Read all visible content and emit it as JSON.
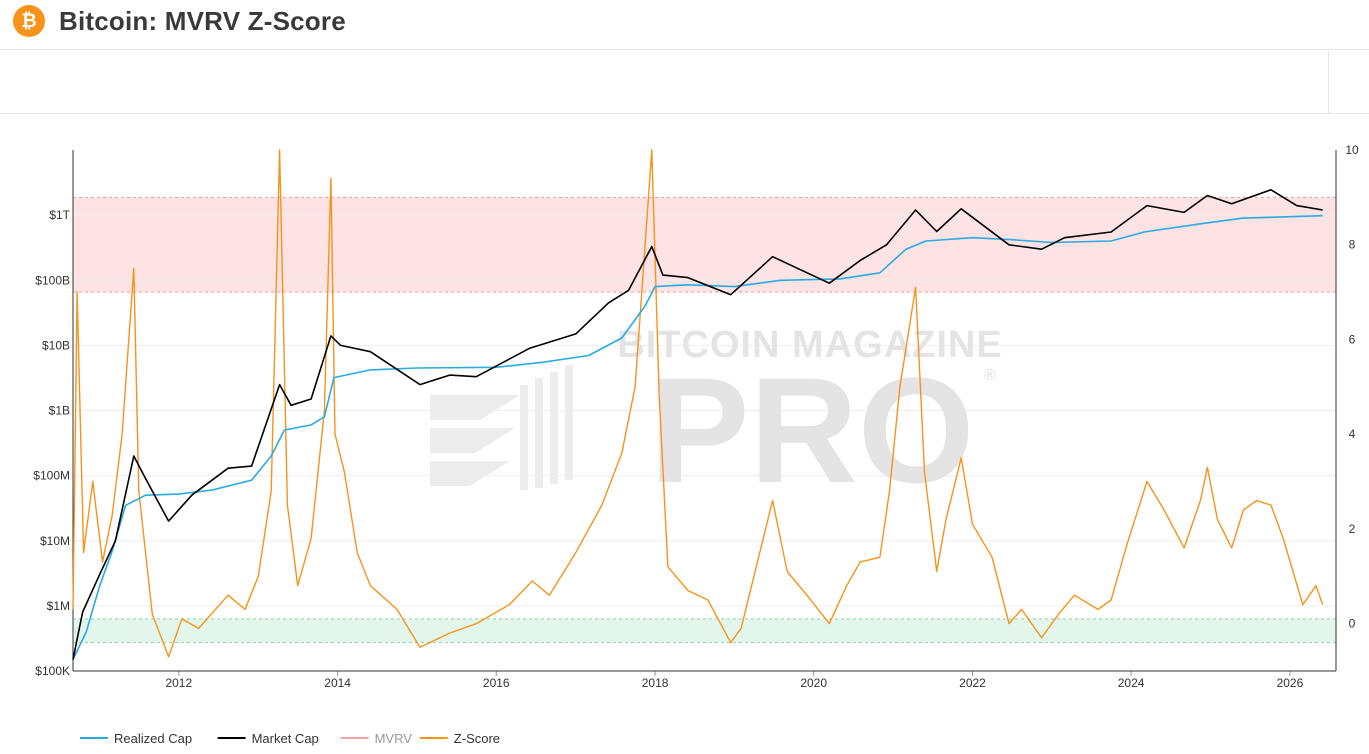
{
  "header": {
    "logo_glyph": "₿",
    "logo_icon": "bitcoin-logo-icon",
    "title": "Bitcoin: MVRV Z-Score"
  },
  "watermark": {
    "line1": "BITCOIN MAGAZINE",
    "line2": "PRO",
    "reg": "®"
  },
  "colors": {
    "realized": "#29abe2",
    "market": "#000000",
    "mvrv": "#f4a6a6",
    "zscore": "#f7931a",
    "red_band": "#fde3e3",
    "green_band": "#e3f6ec"
  },
  "chart_data": {
    "type": "line",
    "title": "Bitcoin: MVRV Z-Score",
    "x_range": [
      "2010-09-01",
      "2026-08-01"
    ],
    "x_ticks": [
      "2012",
      "2014",
      "2016",
      "2018",
      "2020",
      "2022",
      "2024",
      "2026"
    ],
    "y_left": {
      "scale": "log",
      "range": [
        100000,
        10000000000000
      ],
      "ticks": [
        {
          "value": 100000,
          "label": "$100K"
        },
        {
          "value": 1000000,
          "label": "$1M"
        },
        {
          "value": 10000000,
          "label": "$10M"
        },
        {
          "value": 100000000,
          "label": "$100M"
        },
        {
          "value": 1000000000,
          "label": "$1B"
        },
        {
          "value": 10000000000,
          "label": "$10B"
        },
        {
          "value": 100000000000,
          "label": "$100B"
        },
        {
          "value": 1000000000000,
          "label": "$1T"
        }
      ]
    },
    "y_right": {
      "scale": "linear",
      "range": [
        -1,
        10
      ],
      "ticks": [
        {
          "value": 0,
          "label": "0"
        },
        {
          "value": 2,
          "label": "2"
        },
        {
          "value": 4,
          "label": "4"
        },
        {
          "value": 6,
          "label": "6"
        },
        {
          "value": 8,
          "label": "8"
        },
        {
          "value": 10,
          "label": "10"
        }
      ]
    },
    "bands": [
      {
        "name": "red",
        "axis": "right",
        "from": 7,
        "to": 9
      },
      {
        "name": "green",
        "axis": "right",
        "from": -0.4,
        "to": 0.1
      }
    ],
    "series": [
      {
        "name": "Realized Cap",
        "axis": "left",
        "points": [
          [
            "2010-09-01",
            150000
          ],
          [
            "2010-11-01",
            400000
          ],
          [
            "2011-01-01",
            2000000
          ],
          [
            "2011-03-01",
            7000000
          ],
          [
            "2011-05-01",
            35000000
          ],
          [
            "2011-08-01",
            50000000
          ],
          [
            "2012-01-01",
            52000000
          ],
          [
            "2012-06-01",
            60000000
          ],
          [
            "2012-12-01",
            85000000
          ],
          [
            "2013-03-01",
            200000000
          ],
          [
            "2013-05-01",
            500000000
          ],
          [
            "2013-09-01",
            600000000
          ],
          [
            "2013-11-01",
            800000000
          ],
          [
            "2013-12-15",
            3200000000
          ],
          [
            "2014-06-01",
            4200000000
          ],
          [
            "2015-01-01",
            4500000000
          ],
          [
            "2016-01-01",
            4600000000
          ],
          [
            "2016-08-01",
            5500000000
          ],
          [
            "2017-03-01",
            7000000000
          ],
          [
            "2017-08-01",
            13000000000
          ],
          [
            "2017-11-15",
            40000000000
          ],
          [
            "2018-01-01",
            80000000000
          ],
          [
            "2018-06-01",
            85000000000
          ],
          [
            "2019-01-01",
            80000000000
          ],
          [
            "2019-08-01",
            100000000000
          ],
          [
            "2020-05-01",
            105000000000
          ],
          [
            "2020-11-01",
            130000000000
          ],
          [
            "2021-03-01",
            300000000000
          ],
          [
            "2021-06-01",
            400000000000
          ],
          [
            "2022-01-01",
            450000000000
          ],
          [
            "2022-07-01",
            420000000000
          ],
          [
            "2023-01-01",
            380000000000
          ],
          [
            "2023-10-01",
            400000000000
          ],
          [
            "2024-03-01",
            550000000000
          ],
          [
            "2024-12-01",
            750000000000
          ],
          [
            "2025-06-01",
            900000000000
          ],
          [
            "2026-06-01",
            980000000000
          ]
        ]
      },
      {
        "name": "Market Cap",
        "axis": "left",
        "points": [
          [
            "2010-09-01",
            150000
          ],
          [
            "2010-10-15",
            800000
          ],
          [
            "2011-01-01",
            3000000
          ],
          [
            "2011-03-15",
            10000000
          ],
          [
            "2011-06-08",
            200000000
          ],
          [
            "2011-08-01",
            90000000
          ],
          [
            "2011-11-15",
            20000000
          ],
          [
            "2012-03-01",
            50000000
          ],
          [
            "2012-08-15",
            130000000
          ],
          [
            "2012-12-01",
            140000000
          ],
          [
            "2013-04-09",
            2500000000
          ],
          [
            "2013-06-01",
            1200000000
          ],
          [
            "2013-09-01",
            1500000000
          ],
          [
            "2013-12-01",
            14000000000
          ],
          [
            "2014-01-15",
            10000000000
          ],
          [
            "2014-06-01",
            8000000000
          ],
          [
            "2015-01-15",
            2500000000
          ],
          [
            "2015-06-01",
            3500000000
          ],
          [
            "2015-10-01",
            3300000000
          ],
          [
            "2016-06-01",
            9000000000
          ],
          [
            "2017-01-01",
            15000000000
          ],
          [
            "2017-06-01",
            45000000000
          ],
          [
            "2017-09-01",
            70000000000
          ],
          [
            "2017-12-17",
            330000000000
          ],
          [
            "2018-02-06",
            120000000000
          ],
          [
            "2018-06-01",
            110000000000
          ],
          [
            "2018-12-15",
            60000000000
          ],
          [
            "2019-06-26",
            230000000000
          ],
          [
            "2020-03-13",
            90000000000
          ],
          [
            "2020-08-01",
            200000000000
          ],
          [
            "2020-12-01",
            350000000000
          ],
          [
            "2021-04-14",
            1200000000000
          ],
          [
            "2021-07-20",
            560000000000
          ],
          [
            "2021-11-10",
            1250000000000
          ],
          [
            "2022-06-18",
            350000000000
          ],
          [
            "2022-11-15",
            300000000000
          ],
          [
            "2023-03-01",
            450000000000
          ],
          [
            "2023-10-01",
            550000000000
          ],
          [
            "2024-03-14",
            1400000000000
          ],
          [
            "2024-09-01",
            1100000000000
          ],
          [
            "2024-12-17",
            2000000000000
          ],
          [
            "2025-04-08",
            1500000000000
          ],
          [
            "2025-10-06",
            2450000000000
          ],
          [
            "2026-02-01",
            1400000000000
          ],
          [
            "2026-06-01",
            1200000000000
          ]
        ]
      },
      {
        "name": "MVRV",
        "axis": "left",
        "points": []
      },
      {
        "name": "Z-Score",
        "axis": "right",
        "points": [
          [
            "2010-09-01",
            0.3
          ],
          [
            "2010-09-20",
            7.0
          ],
          [
            "2010-10-20",
            1.5
          ],
          [
            "2010-12-01",
            3.0
          ],
          [
            "2011-01-15",
            1.3
          ],
          [
            "2011-03-01",
            2.3
          ],
          [
            "2011-04-15",
            4.0
          ],
          [
            "2011-06-08",
            7.5
          ],
          [
            "2011-07-01",
            2.8
          ],
          [
            "2011-09-01",
            0.2
          ],
          [
            "2011-11-15",
            -0.7
          ],
          [
            "2012-01-15",
            0.1
          ],
          [
            "2012-04-01",
            -0.1
          ],
          [
            "2012-08-15",
            0.6
          ],
          [
            "2012-11-01",
            0.3
          ],
          [
            "2013-01-01",
            1.0
          ],
          [
            "2013-03-01",
            2.8
          ],
          [
            "2013-04-09",
            10.0
          ],
          [
            "2013-05-15",
            2.5
          ],
          [
            "2013-07-01",
            0.8
          ],
          [
            "2013-09-01",
            1.8
          ],
          [
            "2013-11-01",
            4.5
          ],
          [
            "2013-12-01",
            9.4
          ],
          [
            "2013-12-20",
            4.0
          ],
          [
            "2014-02-01",
            3.2
          ],
          [
            "2014-04-01",
            1.5
          ],
          [
            "2014-06-01",
            0.8
          ],
          [
            "2014-10-01",
            0.3
          ],
          [
            "2015-01-15",
            -0.5
          ],
          [
            "2015-06-01",
            -0.2
          ],
          [
            "2015-10-01",
            0.0
          ],
          [
            "2016-03-01",
            0.4
          ],
          [
            "2016-06-15",
            0.9
          ],
          [
            "2016-09-01",
            0.6
          ],
          [
            "2017-01-01",
            1.5
          ],
          [
            "2017-05-01",
            2.5
          ],
          [
            "2017-08-01",
            3.6
          ],
          [
            "2017-10-01",
            5.0
          ],
          [
            "2017-12-17",
            10.0
          ],
          [
            "2018-01-20",
            4.8
          ],
          [
            "2018-03-01",
            1.2
          ],
          [
            "2018-06-01",
            0.7
          ],
          [
            "2018-09-01",
            0.5
          ],
          [
            "2018-12-15",
            -0.4
          ],
          [
            "2019-02-01",
            -0.1
          ],
          [
            "2019-06-26",
            2.6
          ],
          [
            "2019-09-01",
            1.1
          ],
          [
            "2019-12-01",
            0.6
          ],
          [
            "2020-03-13",
            0.0
          ],
          [
            "2020-06-01",
            0.8
          ],
          [
            "2020-08-01",
            1.3
          ],
          [
            "2020-11-01",
            1.4
          ],
          [
            "2020-12-15",
            2.8
          ],
          [
            "2021-02-01",
            5.0
          ],
          [
            "2021-04-14",
            7.1
          ],
          [
            "2021-05-25",
            3.2
          ],
          [
            "2021-07-20",
            1.1
          ],
          [
            "2021-09-01",
            2.2
          ],
          [
            "2021-11-10",
            3.5
          ],
          [
            "2022-01-01",
            2.1
          ],
          [
            "2022-04-01",
            1.4
          ],
          [
            "2022-06-18",
            0.0
          ],
          [
            "2022-08-15",
            0.3
          ],
          [
            "2022-11-15",
            -0.3
          ],
          [
            "2023-02-01",
            0.2
          ],
          [
            "2023-04-15",
            0.6
          ],
          [
            "2023-08-01",
            0.3
          ],
          [
            "2023-10-01",
            0.5
          ],
          [
            "2023-12-15",
            1.7
          ],
          [
            "2024-03-14",
            3.0
          ],
          [
            "2024-06-01",
            2.4
          ],
          [
            "2024-09-01",
            1.6
          ],
          [
            "2024-11-15",
            2.6
          ],
          [
            "2024-12-17",
            3.3
          ],
          [
            "2025-02-01",
            2.2
          ],
          [
            "2025-04-08",
            1.6
          ],
          [
            "2025-06-01",
            2.4
          ],
          [
            "2025-08-01",
            2.6
          ],
          [
            "2025-10-06",
            2.5
          ],
          [
            "2025-12-01",
            1.8
          ],
          [
            "2026-01-15",
            1.1
          ],
          [
            "2026-03-01",
            0.4
          ],
          [
            "2026-05-01",
            0.8
          ],
          [
            "2026-06-01",
            0.4
          ]
        ]
      }
    ],
    "legend": {
      "placement": "bottom-left",
      "items": [
        "Realized Cap",
        "Market Cap",
        "MVRV",
        "Z-Score"
      ],
      "hidden": [
        "MVRV"
      ]
    }
  }
}
